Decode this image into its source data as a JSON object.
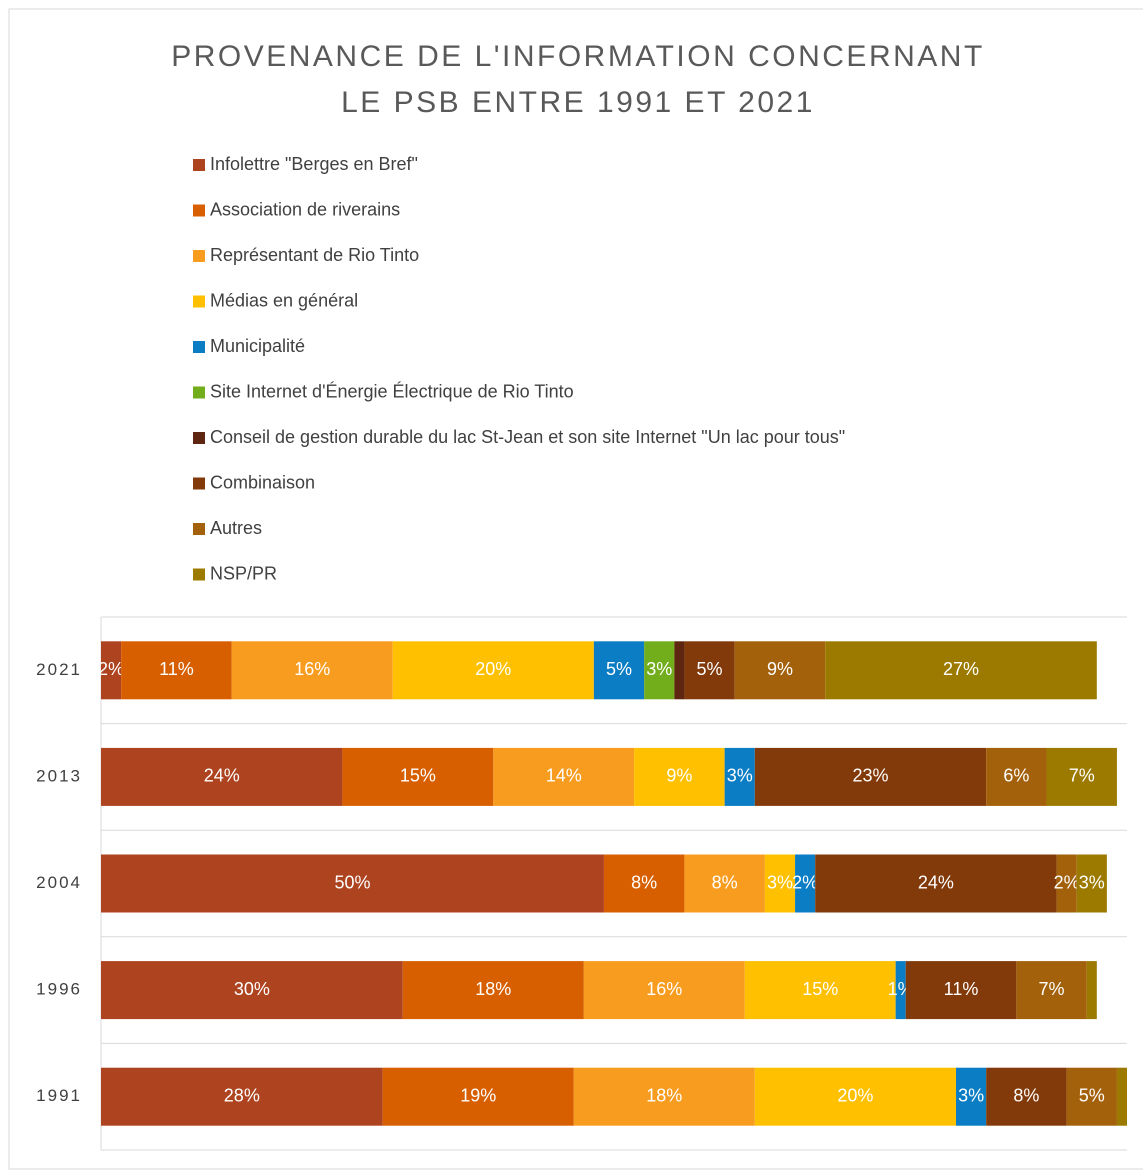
{
  "chart_data": {
    "type": "stacked-bar-horizontal",
    "title": [
      "PROVENANCE DE L'INFORMATION CONCERNANT",
      "LE PSB ENTRE 1991 ET 2021"
    ],
    "categories": [
      "2021",
      "2013",
      "2004",
      "1996",
      "1991"
    ],
    "xlim": [
      0,
      102
    ],
    "series": [
      {
        "name": "Infolettre \"Berges en Bref\"",
        "color": "#ad431f",
        "values": [
          2,
          24,
          50,
          30,
          28
        ],
        "value_labels": [
          "2%",
          "24%",
          "50%",
          "30%",
          "28%"
        ]
      },
      {
        "name": "Association de riverains",
        "color": "#d75f00",
        "values": [
          11,
          15,
          8,
          18,
          19
        ],
        "value_labels": [
          "11%",
          "15%",
          "8%",
          "18%",
          "19%"
        ]
      },
      {
        "name": "Représentant de Rio Tinto",
        "color": "#f89c20",
        "values": [
          16,
          14,
          8,
          16,
          18
        ],
        "value_labels": [
          "16%",
          "14%",
          "8%",
          "16%",
          "18%"
        ]
      },
      {
        "name": "Médias en général",
        "color": "#ffc000",
        "values": [
          20,
          9,
          3,
          15,
          20
        ],
        "value_labels": [
          "20%",
          "9%",
          "3%",
          "15%",
          "20%"
        ]
      },
      {
        "name": "Municipalité",
        "color": "#0b7dc4",
        "values": [
          5,
          3,
          2,
          1,
          3
        ],
        "value_labels": [
          "5%",
          "3%",
          "2%",
          "1%",
          "3%"
        ]
      },
      {
        "name": "Site Internet d'Énergie Électrique de Rio Tinto",
        "color": "#72ad1c",
        "values": [
          3,
          null,
          null,
          null,
          null
        ],
        "value_labels": [
          "3%",
          null,
          null,
          null,
          null
        ]
      },
      {
        "name": "Conseil de gestion durable du lac St-Jean et son site Internet \"Un lac pour tous\"",
        "color": "#5e2610",
        "values": [
          1,
          null,
          null,
          null,
          null
        ],
        "value_labels": [
          null,
          null,
          null,
          null,
          null
        ]
      },
      {
        "name": "Combinaison",
        "color": "#833a0a",
        "values": [
          5,
          23,
          24,
          11,
          8
        ],
        "value_labels": [
          "5%",
          "23%",
          "24%",
          "11%",
          "8%"
        ]
      },
      {
        "name": "Autres",
        "color": "#a3610b",
        "values": [
          9,
          6,
          2,
          7,
          5
        ],
        "value_labels": [
          "9%",
          "6%",
          "2%",
          "7%",
          "5%"
        ]
      },
      {
        "name": "NSP/PR",
        "color": "#9c7a00",
        "values": [
          27,
          7,
          3,
          1,
          1
        ],
        "value_labels": [
          "27%",
          "7%",
          "3%",
          null,
          null
        ]
      }
    ]
  }
}
